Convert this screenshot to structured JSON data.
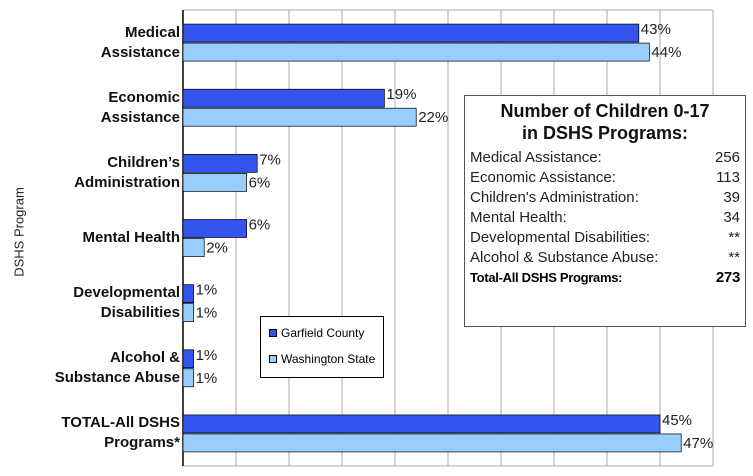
{
  "chart_data": {
    "type": "bar",
    "orientation": "horizontal",
    "y_label": "DSHS Program",
    "categories": [
      "Medical\nAssistance",
      "Economic\nAssistance",
      "Children’s\nAdministration",
      "Mental Health",
      "Developmental\nDisabilities",
      "Alcohol &\nSubstance Abuse",
      "TOTAL-All DSHS\nPrograms*"
    ],
    "series": [
      {
        "name": "Garfield County",
        "color": "#3355ee",
        "values": [
          43,
          19,
          7,
          6,
          1,
          1,
          45
        ],
        "value_labels": [
          "43%",
          "19%",
          "7%",
          "6%",
          "1%",
          "1%",
          "45%"
        ]
      },
      {
        "name": "Washington State",
        "color": "#99ccff",
        "values": [
          44,
          22,
          6,
          2,
          1,
          1,
          47
        ],
        "value_labels": [
          "44%",
          "22%",
          "6%",
          "2%",
          "1%",
          "1%",
          "47%"
        ]
      }
    ],
    "xlim": [
      0,
      50
    ],
    "xticks": [
      0,
      5,
      10,
      15,
      20,
      25,
      30,
      35,
      40,
      45,
      50
    ],
    "grid": true
  },
  "inset": {
    "title": "Number of Children 0-17\nin DSHS Programs:",
    "rows": [
      {
        "label": "Medical Assistance:",
        "value": 256
      },
      {
        "label": "Economic Assistance:",
        "value": 113
      },
      {
        "label": "Children's Administration:",
        "value": 39
      },
      {
        "label": "Mental Health:",
        "value": 34
      },
      {
        "label": "Developmental Disabilities:",
        "value": "**"
      },
      {
        "label": "Alcohol & Substance Abuse:",
        "value": "**"
      }
    ],
    "total": {
      "label": "Total-All DSHS Programs:",
      "value": 273
    }
  }
}
